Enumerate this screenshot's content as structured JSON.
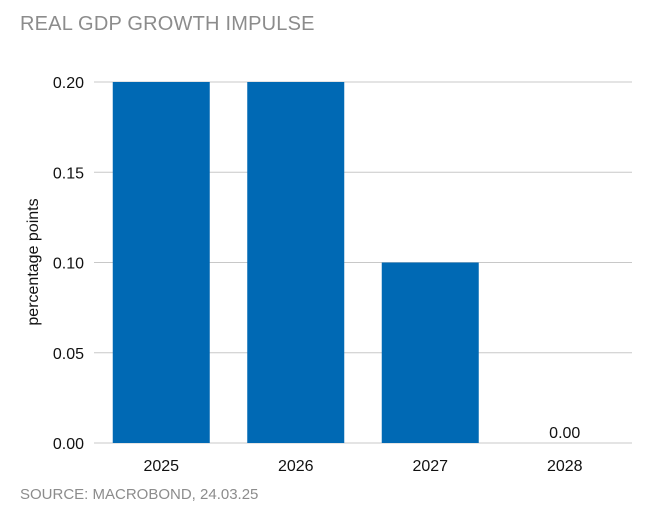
{
  "chart_data": {
    "type": "bar",
    "title": "REAL GDP GROWTH IMPULSE",
    "source": "SOURCE: MACROBOND, 24.03.25",
    "xlabel": "",
    "ylabel": "percentage points",
    "categories": [
      "2025",
      "2026",
      "2027",
      "2028"
    ],
    "values": [
      0.2,
      0.2,
      0.1,
      0.0
    ],
    "data_labels": [
      "",
      "",
      "",
      "0.00"
    ],
    "ylim": [
      0,
      0.2
    ],
    "yticks": [
      "0.00",
      "0.05",
      "0.10",
      "0.15",
      "0.20"
    ],
    "grid": true,
    "bar_color": "#0069b4",
    "grid_color": "#c8c8c8",
    "text_muted_color": "#8c8c8c"
  }
}
